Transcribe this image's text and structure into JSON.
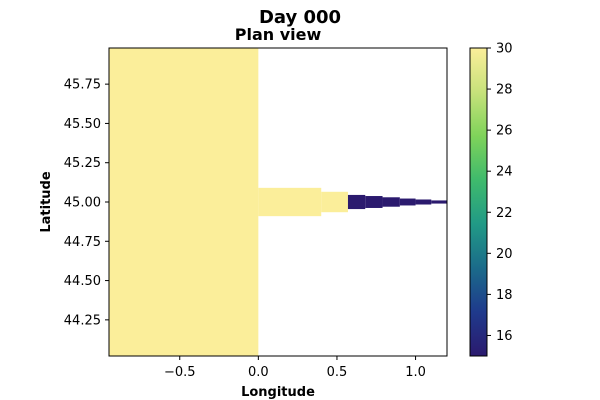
{
  "chart_data": {
    "type": "heatmap",
    "suptitle": "Day 000",
    "title": "Plan view",
    "xlabel": "Longitude",
    "ylabel": "Latitude",
    "xlim": [
      -0.95,
      1.2
    ],
    "ylim": [
      44.02,
      45.98
    ],
    "xticks": [
      {
        "value": -0.5,
        "label": "−0.5"
      },
      {
        "value": 0.0,
        "label": "0.0"
      },
      {
        "value": 0.5,
        "label": "0.5"
      },
      {
        "value": 1.0,
        "label": "1.0"
      }
    ],
    "yticks": [
      {
        "value": 44.25,
        "label": "44.25"
      },
      {
        "value": 44.5,
        "label": "44.50"
      },
      {
        "value": 44.75,
        "label": "44.75"
      },
      {
        "value": 45.0,
        "label": "45.00"
      },
      {
        "value": 45.25,
        "label": "45.25"
      },
      {
        "value": 45.5,
        "label": "45.50"
      },
      {
        "value": 45.75,
        "label": "45.75"
      }
    ],
    "colorbar": {
      "min": 15,
      "max": 30,
      "ticks": [
        16,
        18,
        20,
        22,
        24,
        26,
        28,
        30
      ],
      "colormap": "viridis-like",
      "colors": [
        "#2b1a6e",
        "#1f3a8c",
        "#1b6b8a",
        "#219a86",
        "#3fba6c",
        "#7fd35a",
        "#c7e27b",
        "#fbee9a"
      ]
    },
    "cells": [
      {
        "lon0": -0.95,
        "lon1": 0.0,
        "lat_half_width": 0.98,
        "value": 30
      },
      {
        "lon0": 0.0,
        "lon1": 0.4,
        "lat_half_width": 0.09,
        "value": 30
      },
      {
        "lon0": 0.4,
        "lon1": 0.57,
        "lat_half_width": 0.065,
        "value": 30
      },
      {
        "lon0": 0.57,
        "lon1": 0.68,
        "lat_half_width": 0.045,
        "value": 15
      },
      {
        "lon0": 0.68,
        "lon1": 0.79,
        "lat_half_width": 0.038,
        "value": 15
      },
      {
        "lon0": 0.79,
        "lon1": 0.9,
        "lat_half_width": 0.03,
        "value": 15
      },
      {
        "lon0": 0.9,
        "lon1": 1.0,
        "lat_half_width": 0.022,
        "value": 15
      },
      {
        "lon0": 1.0,
        "lon1": 1.1,
        "lat_half_width": 0.016,
        "value": 15
      },
      {
        "lon0": 1.1,
        "lon1": 1.2,
        "lat_half_width": 0.01,
        "value": 15
      }
    ],
    "center_lat": 45.0,
    "grid": false
  }
}
